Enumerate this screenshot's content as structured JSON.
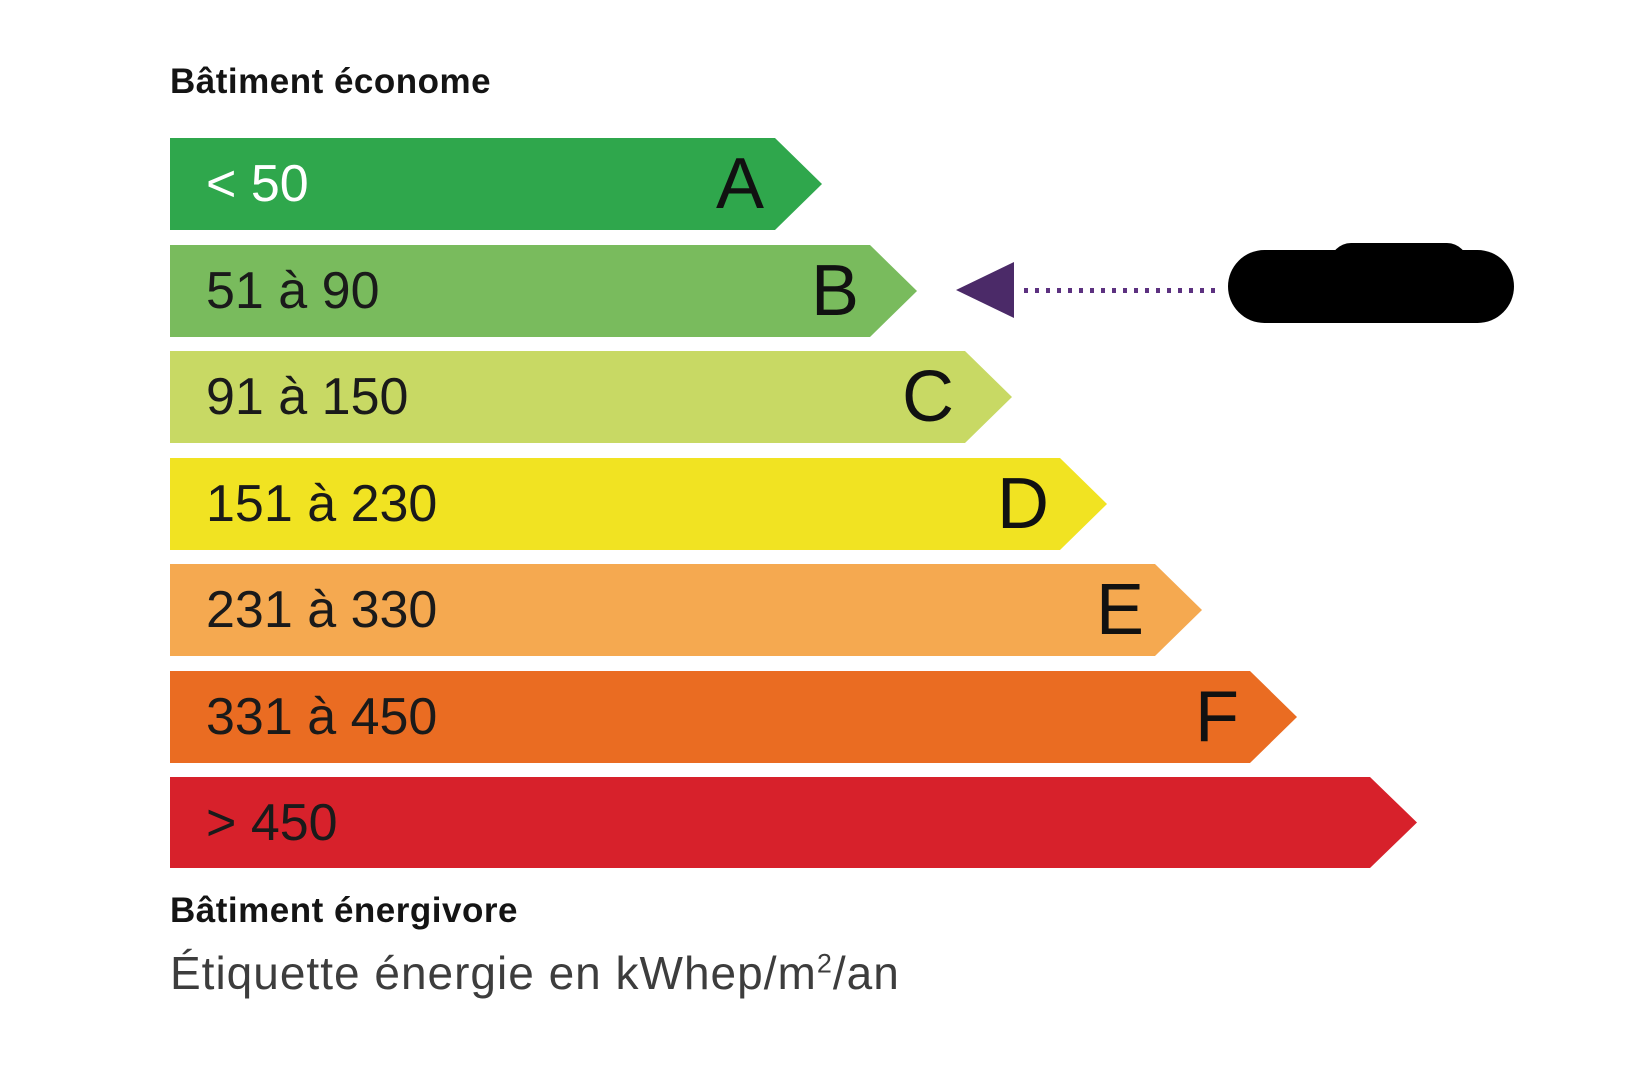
{
  "header": {
    "title": "Bâtiment économe"
  },
  "footer": {
    "title": "Bâtiment énergivore",
    "caption_prefix": "Étiquette énergie en kWhep/m",
    "caption_sup": "2",
    "caption_suffix": "/an"
  },
  "chart_data": {
    "type": "bar",
    "orientation": "horizontal",
    "title": "Étiquette énergie en kWhep/m²/an",
    "unit": "kWhep/m²/an",
    "top_axis_label": "Bâtiment économe",
    "bottom_axis_label": "Bâtiment énergivore",
    "categories": [
      "A",
      "B",
      "C",
      "D",
      "E",
      "F"
    ],
    "bands": [
      {
        "letter": "A",
        "range_label": "< 50",
        "min": null,
        "max": 50,
        "color": "#2fa74c",
        "label_color": "#ffffff"
      },
      {
        "letter": "B",
        "range_label": "51 à 90",
        "min": 51,
        "max": 90,
        "color": "#79bb5d",
        "label_color": "#1a1a1a"
      },
      {
        "letter": "C",
        "range_label": "91 à 150",
        "min": 91,
        "max": 150,
        "color": "#c8d964",
        "label_color": "#1a1a1a"
      },
      {
        "letter": "D",
        "range_label": "151 à 230",
        "min": 151,
        "max": 230,
        "color": "#f1e322",
        "label_color": "#1a1a1a"
      },
      {
        "letter": "E",
        "range_label": "231 à 330",
        "min": 231,
        "max": 330,
        "color": "#f5a950",
        "label_color": "#1a1a1a"
      },
      {
        "letter": "F",
        "range_label": "331 à 450",
        "min": 331,
        "max": 450,
        "color": "#ea6c22",
        "label_color": "#1a1a1a"
      },
      {
        "letter": "",
        "range_label": "> 450",
        "min": 450,
        "max": null,
        "color": "#d7212b",
        "label_color": "#1a1a1a"
      }
    ],
    "annotation": {
      "selected_band": "B",
      "arrow_color": "#4b2a68",
      "dotted_line_color": "#5c3180",
      "value_hidden_by_black_box": true
    }
  }
}
